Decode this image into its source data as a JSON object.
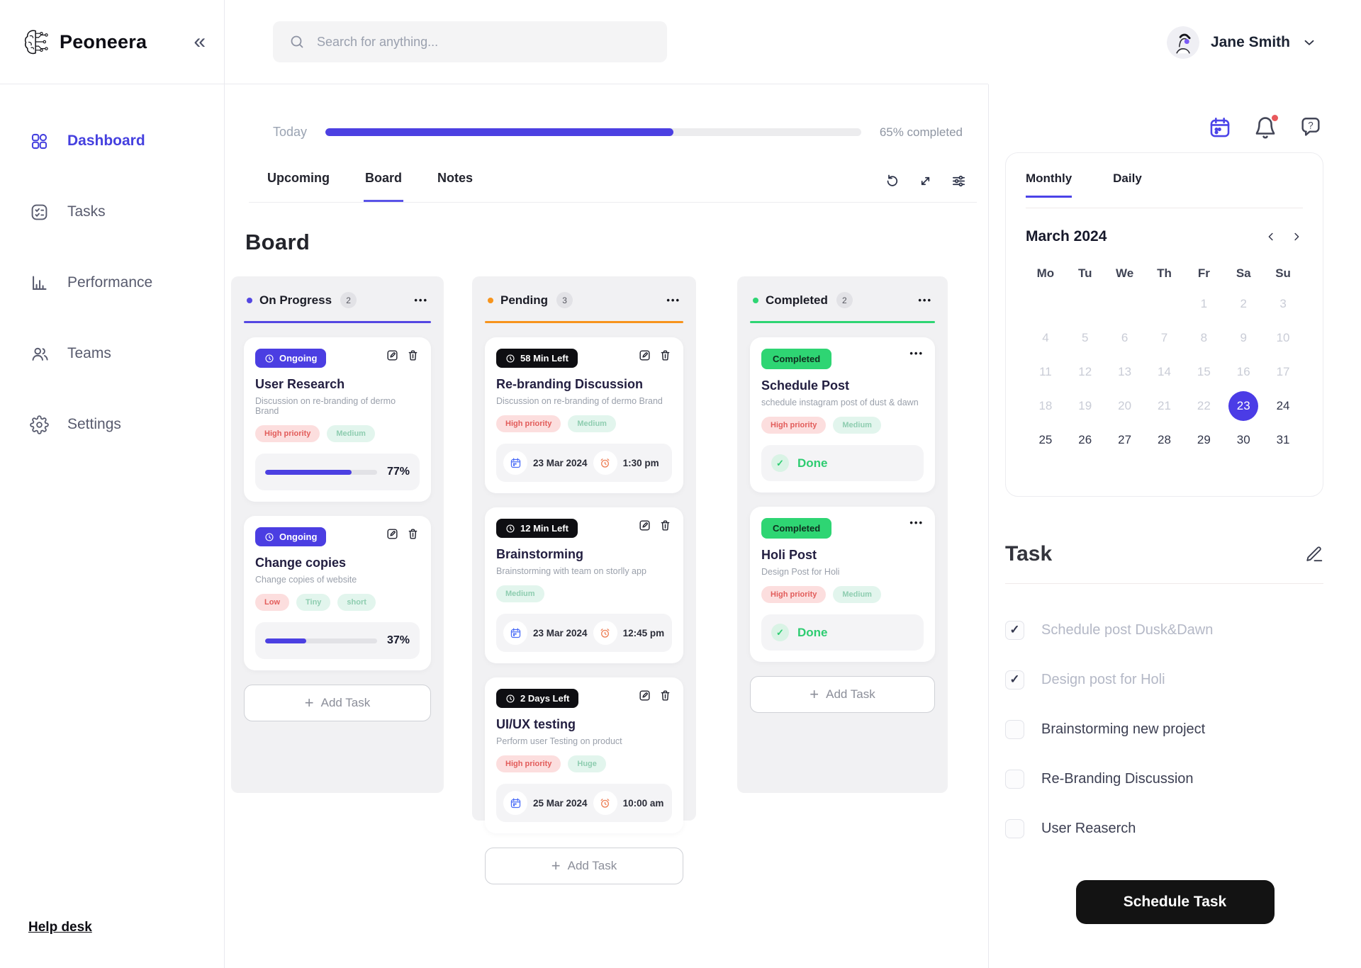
{
  "theme": {
    "primary": "#4c40e2",
    "orange": "#f7941d",
    "green": "#2ed573",
    "red": "#e25c5a",
    "pink_bg": "#fcdede",
    "mint_bg": "#e2f5ed",
    "mint_text": "#8ecdb0",
    "dark": "#221e40",
    "black_badge": "#0e0e12"
  },
  "brand": {
    "name": "Peoneera"
  },
  "search": {
    "placeholder": "Search for anything..."
  },
  "user": {
    "name": "Jane Smith"
  },
  "sidebar": {
    "items": [
      {
        "label": "Dashboard"
      },
      {
        "label": "Tasks"
      },
      {
        "label": "Performance"
      },
      {
        "label": "Teams"
      },
      {
        "label": "Settings"
      }
    ],
    "help_label": "Help desk"
  },
  "header": {
    "today_label": "Today",
    "percent": 65,
    "completed_text": "65% completed"
  },
  "tabs": {
    "upcoming": "Upcoming",
    "board": "Board",
    "notes": "Notes"
  },
  "board": {
    "title": "Board",
    "columns": [
      {
        "name": "On Progress",
        "count": "2",
        "add_label": "Add Task",
        "cards": [
          {
            "badge": "Ongoing",
            "title": "User Research",
            "desc": "Discussion on re-branding of dermo Brand",
            "tags": [
              {
                "label": "High priority",
                "tone": "pink"
              },
              {
                "label": "Medium",
                "tone": "mint"
              }
            ],
            "percent": 77,
            "percent_label": "77%"
          },
          {
            "badge": "Ongoing",
            "title": "Change copies",
            "desc": "Change copies of website",
            "tags": [
              {
                "label": "Low",
                "tone": "pink"
              },
              {
                "label": "Tiny",
                "tone": "mint"
              },
              {
                "label": "short",
                "tone": "mint"
              }
            ],
            "percent": 37,
            "percent_label": "37%"
          }
        ]
      },
      {
        "name": "Pending",
        "count": "3",
        "add_label": "Add Task",
        "cards": [
          {
            "badge": "58 Min Left",
            "title": "Re-branding Discussion",
            "desc": "Discussion on re-branding of dermo Brand",
            "tags": [
              {
                "label": "High priority",
                "tone": "pink"
              },
              {
                "label": "Medium",
                "tone": "mint"
              }
            ],
            "date": "23 Mar 2024",
            "time": "1:30 pm"
          },
          {
            "badge": "12 Min Left",
            "title": "Brainstorming",
            "desc": "Brainstorming with team on storlly app",
            "tags": [
              {
                "label": "Medium",
                "tone": "mint"
              }
            ],
            "date": "23 Mar 2024",
            "time": "12:45 pm"
          },
          {
            "badge": "2 Days Left",
            "title": "UI/UX testing",
            "desc": "Perform user Testing on product",
            "tags": [
              {
                "label": "High priority",
                "tone": "pink"
              },
              {
                "label": "Huge",
                "tone": "mint"
              }
            ],
            "date": "25 Mar 2024",
            "time": "10:00 am"
          }
        ]
      },
      {
        "name": "Completed",
        "count": "2",
        "add_label": "Add Task",
        "cards": [
          {
            "badge": "Completed",
            "title": "Schedule Post",
            "desc": "schedule instagram post of dust & dawn",
            "tags": [
              {
                "label": "High priority",
                "tone": "pink"
              },
              {
                "label": "Medium",
                "tone": "mint"
              }
            ],
            "status": "Done"
          },
          {
            "badge": "Completed",
            "title": "Holi Post",
            "desc": "Design Post for Holi",
            "tags": [
              {
                "label": "High priority",
                "tone": "pink"
              },
              {
                "label": "Medium",
                "tone": "mint"
              }
            ],
            "status": "Done"
          }
        ]
      }
    ]
  },
  "calendar": {
    "nav_tabs": {
      "monthly": "Monthly",
      "daily": "Daily"
    },
    "month_label": "March 2024",
    "weekdays": [
      "Mo",
      "Tu",
      "We",
      "Th",
      "Fr",
      "Sa",
      "Su"
    ],
    "lead_blanks": 4,
    "days": [
      {
        "d": 1,
        "state": "muted"
      },
      {
        "d": 2,
        "state": "muted"
      },
      {
        "d": 3,
        "state": "muted"
      },
      {
        "d": 4,
        "state": "muted"
      },
      {
        "d": 5,
        "state": "muted"
      },
      {
        "d": 6,
        "state": "muted"
      },
      {
        "d": 7,
        "state": "muted"
      },
      {
        "d": 8,
        "state": "muted"
      },
      {
        "d": 9,
        "state": "muted"
      },
      {
        "d": 10,
        "state": "muted"
      },
      {
        "d": 11,
        "state": "muted"
      },
      {
        "d": 12,
        "state": "muted"
      },
      {
        "d": 13,
        "state": "muted"
      },
      {
        "d": 14,
        "state": "muted"
      },
      {
        "d": 15,
        "state": "muted"
      },
      {
        "d": 16,
        "state": "muted"
      },
      {
        "d": 17,
        "state": "muted"
      },
      {
        "d": 18,
        "state": "muted"
      },
      {
        "d": 19,
        "state": "muted"
      },
      {
        "d": 20,
        "state": "muted"
      },
      {
        "d": 21,
        "state": "muted"
      },
      {
        "d": 22,
        "state": "muted"
      },
      {
        "d": 23,
        "state": "selected"
      },
      {
        "d": 24,
        "state": "normal"
      },
      {
        "d": 25,
        "state": "normal"
      },
      {
        "d": 26,
        "state": "normal"
      },
      {
        "d": 27,
        "state": "normal"
      },
      {
        "d": 28,
        "state": "normal"
      },
      {
        "d": 29,
        "state": "normal"
      },
      {
        "d": 30,
        "state": "normal"
      },
      {
        "d": 31,
        "state": "normal"
      }
    ]
  },
  "tasks_panel": {
    "title": "Task",
    "items": [
      {
        "label": "Schedule post Dusk&Dawn",
        "state": "done"
      },
      {
        "label": "Design post for Holi",
        "state": "done"
      },
      {
        "label": "Brainstorming new project",
        "state": "todo"
      },
      {
        "label": "Re-Branding Discussion",
        "state": "todo"
      },
      {
        "label": "User Reaserch",
        "state": "todo"
      }
    ],
    "cta": "Schedule Task"
  }
}
